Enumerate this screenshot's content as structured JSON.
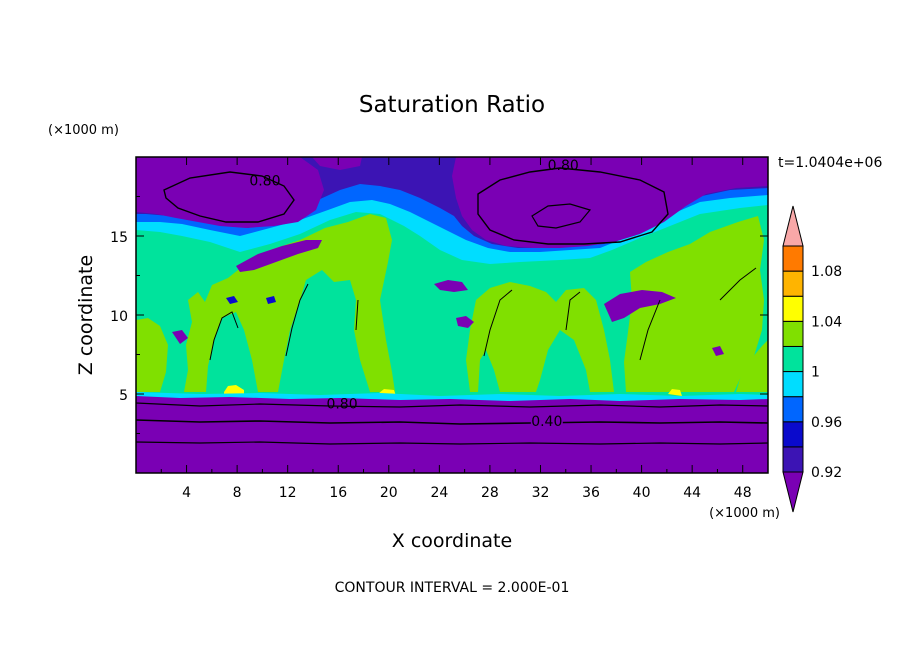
{
  "chart_data": {
    "type": "heatmap",
    "title": "Saturation Ratio",
    "xlabel": "X coordinate",
    "ylabel": "Z coordinate",
    "x_unit": "(×1000 m)",
    "y_unit": "(×1000 m)",
    "xlim": [
      0,
      50
    ],
    "ylim": [
      0,
      20
    ],
    "x_ticks": [
      4,
      8,
      12,
      16,
      20,
      24,
      28,
      32,
      36,
      40,
      44,
      48
    ],
    "y_ticks": [
      5,
      10,
      15
    ],
    "time_label": "t=1.0404e+06",
    "contour_interval_text": "CONTOUR INTERVAL = 2.000E-01",
    "contour_labels": [
      {
        "text": "0.80",
        "x": 10.2,
        "z": 18.5
      },
      {
        "text": "0.80",
        "x": 33.8,
        "z": 19.5
      },
      {
        "text": "0.80",
        "x": 16.3,
        "z": 4.4
      },
      {
        "text": "0.40",
        "x": 32.5,
        "z": 3.3
      }
    ],
    "colorbar": {
      "levels": [
        0.92,
        0.94,
        0.96,
        0.98,
        1.0,
        1.02,
        1.04,
        1.06,
        1.08,
        1.1
      ],
      "colors": [
        "#7a00b4",
        "#3c14b4",
        "#0a0acc",
        "#0066ff",
        "#00ddff",
        "#00e39c",
        "#80e000",
        "#ffff00",
        "#ffb400",
        "#ff7a00",
        "#ff3c14",
        "#ff0000",
        "#f8a8a8"
      ],
      "tick_labels": [
        "1.08",
        "1.04",
        "1",
        "0.96",
        "0.92"
      ],
      "tick_values": [
        1.08,
        1.04,
        1.0,
        0.96,
        0.92
      ]
    }
  }
}
